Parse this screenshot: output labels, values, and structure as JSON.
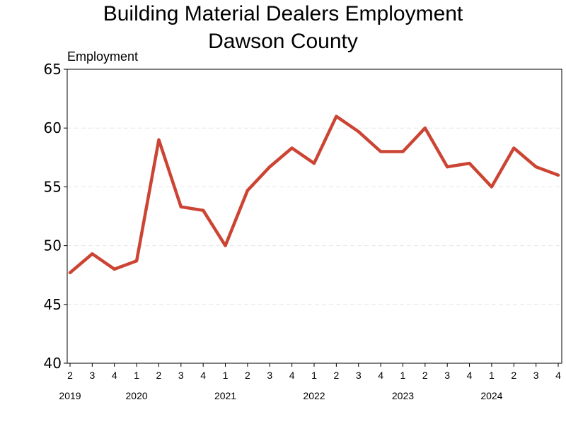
{
  "chart_data": {
    "type": "line",
    "title": "Building Material Dealers Employment",
    "subtitle": "Dawson County",
    "ylabel": "Employment",
    "ylim": [
      40,
      65
    ],
    "yticks": [
      40,
      45,
      50,
      55,
      60,
      65
    ],
    "grid": true,
    "x": [
      "2019 Q2",
      "2019 Q3",
      "2019 Q4",
      "2020 Q1",
      "2020 Q2",
      "2020 Q3",
      "2020 Q4",
      "2021 Q1",
      "2021 Q2",
      "2021 Q3",
      "2021 Q4",
      "2022 Q1",
      "2022 Q2",
      "2022 Q3",
      "2022 Q4",
      "2023 Q1",
      "2023 Q2",
      "2023 Q3",
      "2023 Q4",
      "2024 Q1",
      "2024 Q2",
      "2024 Q3",
      "2024 Q4"
    ],
    "quarter_labels": [
      "2",
      "3",
      "4",
      "1",
      "2",
      "3",
      "4",
      "1",
      "2",
      "3",
      "4",
      "1",
      "2",
      "3",
      "4",
      "1",
      "2",
      "3",
      "4",
      "1",
      "2",
      "3",
      "4"
    ],
    "year_labels": [
      {
        "label": "2019",
        "index": 0
      },
      {
        "label": "2020",
        "index": 3
      },
      {
        "label": "2021",
        "index": 7
      },
      {
        "label": "2022",
        "index": 11
      },
      {
        "label": "2023",
        "index": 15
      },
      {
        "label": "2024",
        "index": 19
      }
    ],
    "series": [
      {
        "values": [
          47.7,
          49.3,
          48.0,
          48.7,
          59.0,
          53.3,
          53.0,
          50.0,
          54.7,
          56.7,
          58.3,
          57.0,
          61.0,
          59.7,
          58.0,
          58.0,
          60.0,
          56.7,
          57.0,
          55.0,
          58.3,
          56.7,
          56.0
        ],
        "color": "#cc4433"
      }
    ]
  }
}
